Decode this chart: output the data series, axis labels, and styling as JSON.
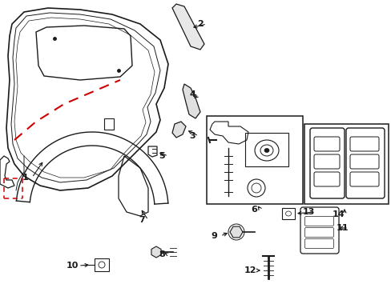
{
  "background_color": "#ffffff",
  "line_color": "#1a1a1a",
  "red_dashed_color": "#cc0000",
  "fig_width": 4.89,
  "fig_height": 3.6,
  "dpi": 100
}
